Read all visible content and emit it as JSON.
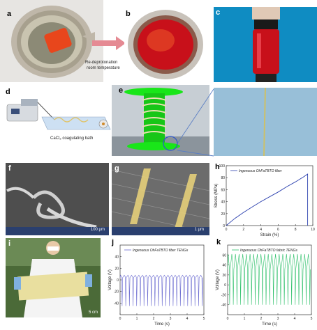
{
  "panels": {
    "a": "a",
    "b": "b",
    "c": "c",
    "d": "d",
    "e": "e",
    "f": "f",
    "g": "g",
    "h": "h",
    "i": "i",
    "j": "j",
    "k": "k"
  },
  "b_caption_1": "Re-deprotonation",
  "b_caption_2": "room temperature",
  "d_caption": "CaCl₂ coagulating bath",
  "f_scale": "100 μm",
  "g_scale": "1 μm",
  "i_scale": "5 cm",
  "colors": {
    "orange": "#e8461c",
    "red_solution": "#c8101a",
    "green_spool": "#19e619",
    "teal_bg": "#0f8cc2",
    "line_blue": "#2a3fae",
    "line_violet": "#6a6ad0",
    "line_green": "#2ec06a"
  },
  "chart_data": [
    {
      "panel": "h",
      "type": "line",
      "legend": "Ingenuous OhFaTBTO fiber",
      "xlabel": "Strain (%)",
      "ylabel": "Stress (MPa)",
      "xlim": [
        0,
        10
      ],
      "ylim": [
        0,
        100
      ],
      "xticks": [
        "0",
        "2",
        "4",
        "6",
        "8",
        "10"
      ],
      "yticks": [
        "0",
        "20",
        "40",
        "60",
        "80",
        "100"
      ],
      "series": [
        {
          "x": [
            0,
            0.5,
            1,
            2,
            3,
            4,
            5,
            6,
            7,
            8,
            9,
            9.4,
            9.4
          ],
          "y": [
            0,
            6,
            12,
            22,
            31,
            40,
            48,
            56,
            65,
            73,
            82,
            86,
            0
          ]
        }
      ]
    },
    {
      "panel": "j",
      "type": "line",
      "legend": "Ingenuous OhFaTBTO fiber TENGs",
      "xlabel": "Time (s)",
      "ylabel": "Voltage (V)",
      "xlim": [
        0,
        5
      ],
      "ylim": [
        -60,
        60
      ],
      "xticks": [
        "0",
        "1",
        "2",
        "3",
        "4",
        "5"
      ],
      "yticks": [
        "40",
        "20",
        "0",
        "-20",
        "-40"
      ],
      "peak_high": 8,
      "peak_low": -45,
      "cycles": 23
    },
    {
      "panel": "k",
      "type": "line",
      "legend": "Ingenuous OhFaTBTO fabric TENGs",
      "xlabel": "Time (s)",
      "ylabel": "Voltage (V)",
      "xlim": [
        0,
        5
      ],
      "ylim": [
        -60,
        80
      ],
      "xticks": [
        "0",
        "1",
        "2",
        "3",
        "4",
        "5"
      ],
      "yticks": [
        "60",
        "40",
        "20",
        "0",
        "-20",
        "-40"
      ],
      "peak_high": 62,
      "peak_low": -40,
      "cycles": 23
    }
  ]
}
